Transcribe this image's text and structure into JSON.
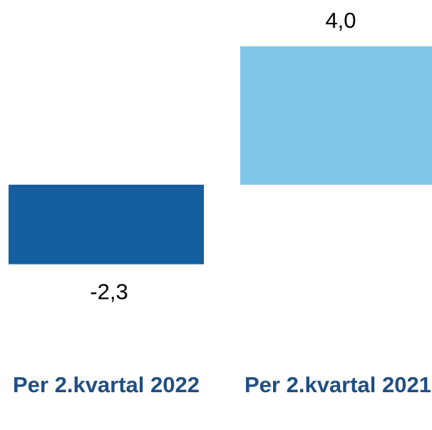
{
  "chart_data": {
    "type": "bar",
    "categories": [
      "Per 2.kvartal 2022",
      "Per 2.kvartal 2021"
    ],
    "values": [
      -2.3,
      4.0
    ],
    "value_labels": [
      "-2,3",
      "4,0"
    ],
    "colors": [
      "#155fa0",
      "#7fc6e8"
    ]
  }
}
